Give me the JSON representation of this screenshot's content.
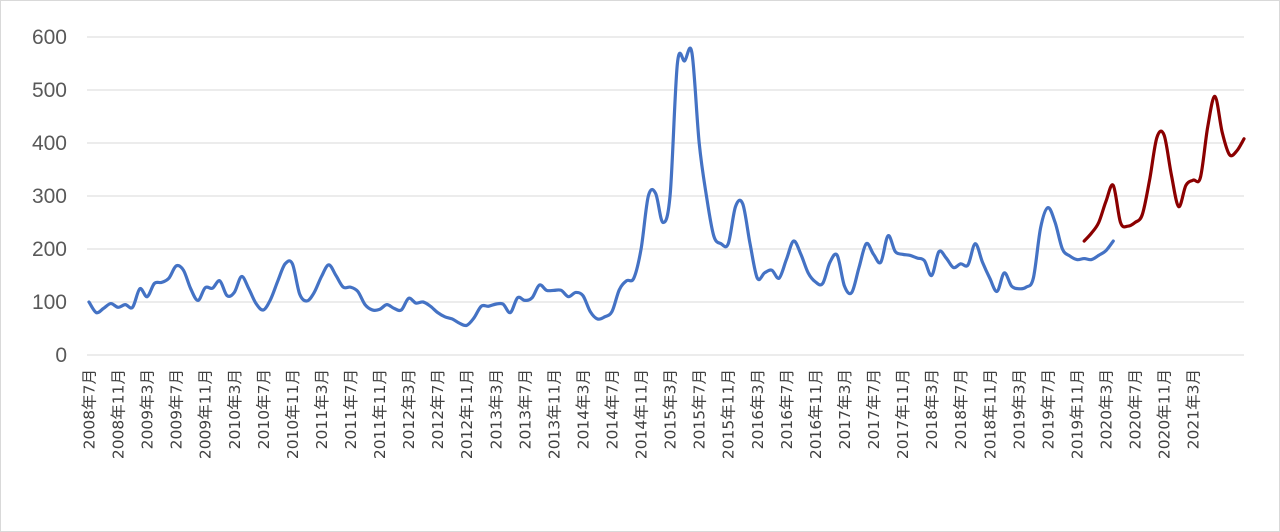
{
  "chart_data": {
    "type": "line",
    "title": "",
    "xlabel": "",
    "ylabel": "",
    "ylim": [
      0,
      600
    ],
    "yticks": [
      0,
      100,
      200,
      300,
      400,
      500,
      600
    ],
    "grid": true,
    "legend": "none",
    "x_tick_labels": [
      "2008年7月",
      "2008年11月",
      "2009年3月",
      "2009年7月",
      "2009年11月",
      "2010年3月",
      "2010年7月",
      "2010年11月",
      "2011年3月",
      "2011年7月",
      "2011年11月",
      "2012年3月",
      "2012年7月",
      "2012年11月",
      "2013年3月",
      "2013年7月",
      "2013年11月",
      "2014年3月",
      "2014年7月",
      "2014年11月",
      "2015年3月",
      "2015年7月",
      "2015年11月",
      "2016年3月",
      "2016年7月",
      "2016年11月",
      "2017年3月",
      "2017年7月",
      "2017年11月",
      "2018年3月",
      "2018年7月",
      "2018年11月",
      "2019年3月",
      "2019年7月",
      "2019年11月",
      "2020年3月",
      "2020年7月",
      "2020年11月",
      "2021年3月"
    ],
    "x_start": "2008-07",
    "series": [
      {
        "color": "#4472c4",
        "start": "2008-07",
        "values": [
          100,
          80,
          88,
          97,
          90,
          95,
          90,
          125,
          110,
          135,
          137,
          145,
          168,
          160,
          125,
          103,
          127,
          126,
          140,
          112,
          118,
          148,
          125,
          97,
          85,
          105,
          140,
          172,
          172,
          115,
          102,
          118,
          148,
          170,
          150,
          128,
          128,
          120,
          95,
          85,
          86,
          95,
          88,
          85,
          107,
          98,
          100,
          92,
          80,
          72,
          68,
          60,
          56,
          70,
          92,
          92,
          96,
          96,
          80,
          108,
          103,
          108,
          132,
          122,
          122,
          122,
          110,
          118,
          112,
          82,
          68,
          72,
          82,
          123,
          140,
          145,
          200,
          300,
          305,
          250,
          302,
          550,
          555,
          570,
          400,
          300,
          225,
          210,
          210,
          280,
          285,
          210,
          145,
          155,
          160,
          145,
          180,
          215,
          190,
          155,
          138,
          135,
          175,
          188,
          130,
          118,
          165,
          210,
          190,
          175,
          225,
          195,
          190,
          188,
          183,
          178,
          150,
          195,
          183,
          165,
          172,
          170,
          210,
          175,
          145,
          120,
          155,
          130,
          125,
          128,
          145,
          240,
          278,
          250,
          200,
          187,
          180,
          182,
          180,
          188,
          197,
          215
        ]
      },
      {
        "color": "#8b0000",
        "start": "2019-12",
        "values": [
          215,
          230,
          250,
          290,
          320,
          250,
          243,
          250,
          265,
          330,
          410,
          415,
          340,
          280,
          320,
          330,
          335,
          430,
          488,
          420,
          378,
          385,
          408
        ]
      }
    ]
  }
}
